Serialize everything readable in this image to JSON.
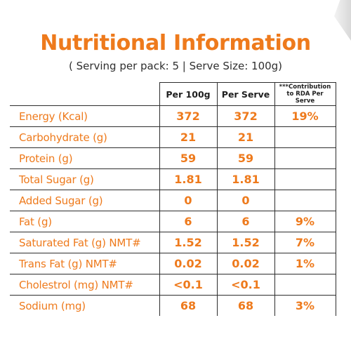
{
  "title": "Nutritional Information",
  "subtitle": "( Serving per pack: 5 | Serve Size: 100g)",
  "table": {
    "headers": {
      "per100g": "Per 100g",
      "perServe": "Per Serve",
      "rda": "***Contribution to RDA Per Serve"
    },
    "rows": [
      {
        "nutrient": "Energy (Kcal)",
        "per100g": "372",
        "perServe": "372",
        "rda": "19%"
      },
      {
        "nutrient": "Carbohydrate (g)",
        "per100g": "21",
        "perServe": "21",
        "rda": ""
      },
      {
        "nutrient": "Protein (g)",
        "per100g": "59",
        "perServe": "59",
        "rda": ""
      },
      {
        "nutrient": "Total Sugar (g)",
        "per100g": "1.81",
        "perServe": "1.81",
        "rda": ""
      },
      {
        "nutrient": "Added Sugar (g)",
        "per100g": "0",
        "perServe": "0",
        "rda": ""
      },
      {
        "nutrient": "Fat (g)",
        "per100g": "6",
        "perServe": "6",
        "rda": "9%"
      },
      {
        "nutrient": "Saturated Fat (g) NMT#",
        "per100g": "1.52",
        "perServe": "1.52",
        "rda": "7%"
      },
      {
        "nutrient": "Trans Fat (g) NMT#",
        "per100g": "0.02",
        "perServe": "0.02",
        "rda": "1%"
      },
      {
        "nutrient": "Cholestrol (mg) NMT#",
        "per100g": "<0.1",
        "perServe": "<0.1",
        "rda": ""
      },
      {
        "nutrient": "Sodium (mg)",
        "per100g": "68",
        "perServe": "68",
        "rda": "3%"
      }
    ]
  },
  "colors": {
    "accent": "#ee7a1c",
    "text": "#2f2f2f",
    "border": "#2d2d2d"
  }
}
